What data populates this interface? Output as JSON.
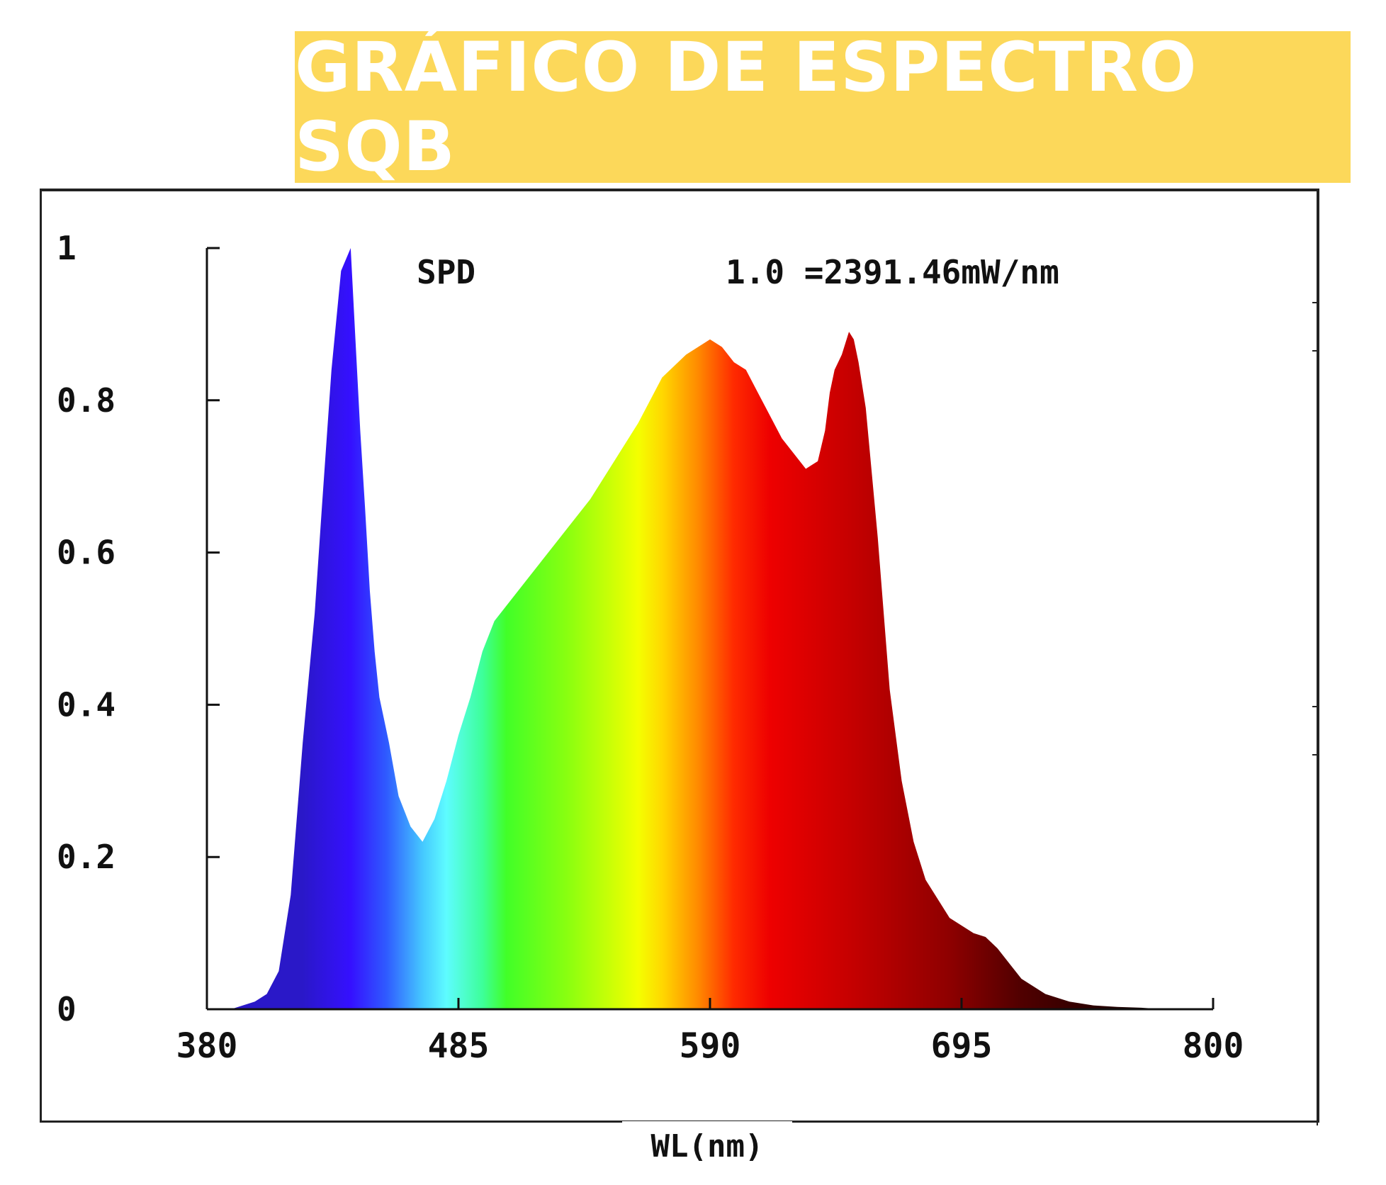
{
  "banner": {
    "title": "GRÁFICO DE ESPECTRO SQB",
    "color": "#fcd85a"
  },
  "chart_data": {
    "type": "area",
    "title": "",
    "xlabel": "WL(nm)",
    "ylabel": "",
    "xlim": [
      380,
      800
    ],
    "ylim": [
      0,
      1
    ],
    "x_ticks": [
      "380",
      "485",
      "590",
      "695",
      "800"
    ],
    "y_ticks": [
      "0",
      "0.2",
      "0.4",
      "0.6",
      "0.8",
      "1"
    ],
    "annotations": {
      "label": "SPD",
      "peak_note": "1.0 =2391.46mW/nm"
    },
    "grid": false,
    "series": [
      {
        "x": [
          380,
          390,
          400,
          405,
          410,
          415,
          420,
          425,
          428,
          432,
          436,
          440,
          442,
          444,
          446,
          448,
          450,
          452,
          456,
          460,
          465,
          470,
          475,
          480,
          485,
          490,
          495,
          500,
          505,
          510,
          515,
          520,
          530,
          540,
          550,
          560,
          570,
          580,
          585,
          590,
          595,
          600,
          605,
          610,
          615,
          620,
          625,
          630,
          635,
          638,
          640,
          642,
          645,
          648,
          650,
          652,
          655,
          660,
          665,
          670,
          675,
          680,
          690,
          700,
          705,
          710,
          715,
          720,
          730,
          740,
          750,
          760,
          770,
          780,
          790,
          800
        ],
        "y": [
          0.0,
          0.0,
          0.01,
          0.02,
          0.05,
          0.15,
          0.35,
          0.52,
          0.66,
          0.84,
          0.97,
          1.0,
          0.88,
          0.76,
          0.66,
          0.55,
          0.47,
          0.41,
          0.35,
          0.28,
          0.24,
          0.22,
          0.25,
          0.3,
          0.36,
          0.41,
          0.47,
          0.51,
          0.53,
          0.55,
          0.57,
          0.59,
          0.63,
          0.67,
          0.72,
          0.77,
          0.83,
          0.86,
          0.87,
          0.88,
          0.87,
          0.85,
          0.84,
          0.81,
          0.78,
          0.75,
          0.73,
          0.71,
          0.72,
          0.76,
          0.81,
          0.84,
          0.86,
          0.89,
          0.88,
          0.85,
          0.79,
          0.62,
          0.42,
          0.3,
          0.22,
          0.17,
          0.12,
          0.1,
          0.095,
          0.08,
          0.06,
          0.04,
          0.02,
          0.01,
          0.005,
          0.003,
          0.002,
          0.0,
          0.0,
          0.0
        ]
      }
    ],
    "spectrum_colors": [
      {
        "nm": 420,
        "color": "#2a18c8"
      },
      {
        "nm": 440,
        "color": "#3510ff"
      },
      {
        "nm": 455,
        "color": "#2f5bff"
      },
      {
        "nm": 470,
        "color": "#45c8ff"
      },
      {
        "nm": 480,
        "color": "#5efcff"
      },
      {
        "nm": 495,
        "color": "#3dff9a"
      },
      {
        "nm": 505,
        "color": "#41ff28"
      },
      {
        "nm": 530,
        "color": "#88ff10"
      },
      {
        "nm": 560,
        "color": "#f4ff00"
      },
      {
        "nm": 570,
        "color": "#ffd800"
      },
      {
        "nm": 585,
        "color": "#ff8a00"
      },
      {
        "nm": 600,
        "color": "#ff2a00"
      },
      {
        "nm": 615,
        "color": "#ee0000"
      },
      {
        "nm": 650,
        "color": "#c40000"
      },
      {
        "nm": 690,
        "color": "#8e0000"
      },
      {
        "nm": 720,
        "color": "#500000"
      },
      {
        "nm": 760,
        "color": "#200000"
      },
      {
        "nm": 800,
        "color": "#0a0000"
      }
    ]
  }
}
